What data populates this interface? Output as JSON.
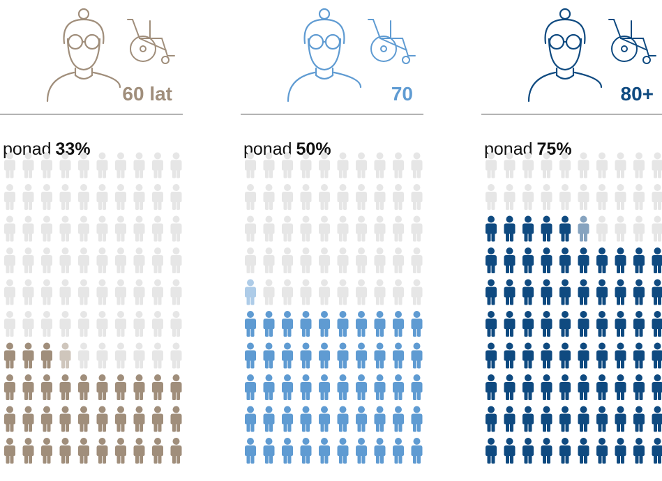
{
  "chart_data": {
    "type": "pictogram",
    "categories": [
      "60 lat",
      "70",
      "80+"
    ],
    "values": [
      33,
      50,
      75
    ],
    "value_labels": [
      "33%",
      "50%",
      "75%"
    ],
    "label_prefix": "ponad",
    "colors": [
      "#a08e7b",
      "#5f9bd2",
      "#0f4a80"
    ]
  }
}
